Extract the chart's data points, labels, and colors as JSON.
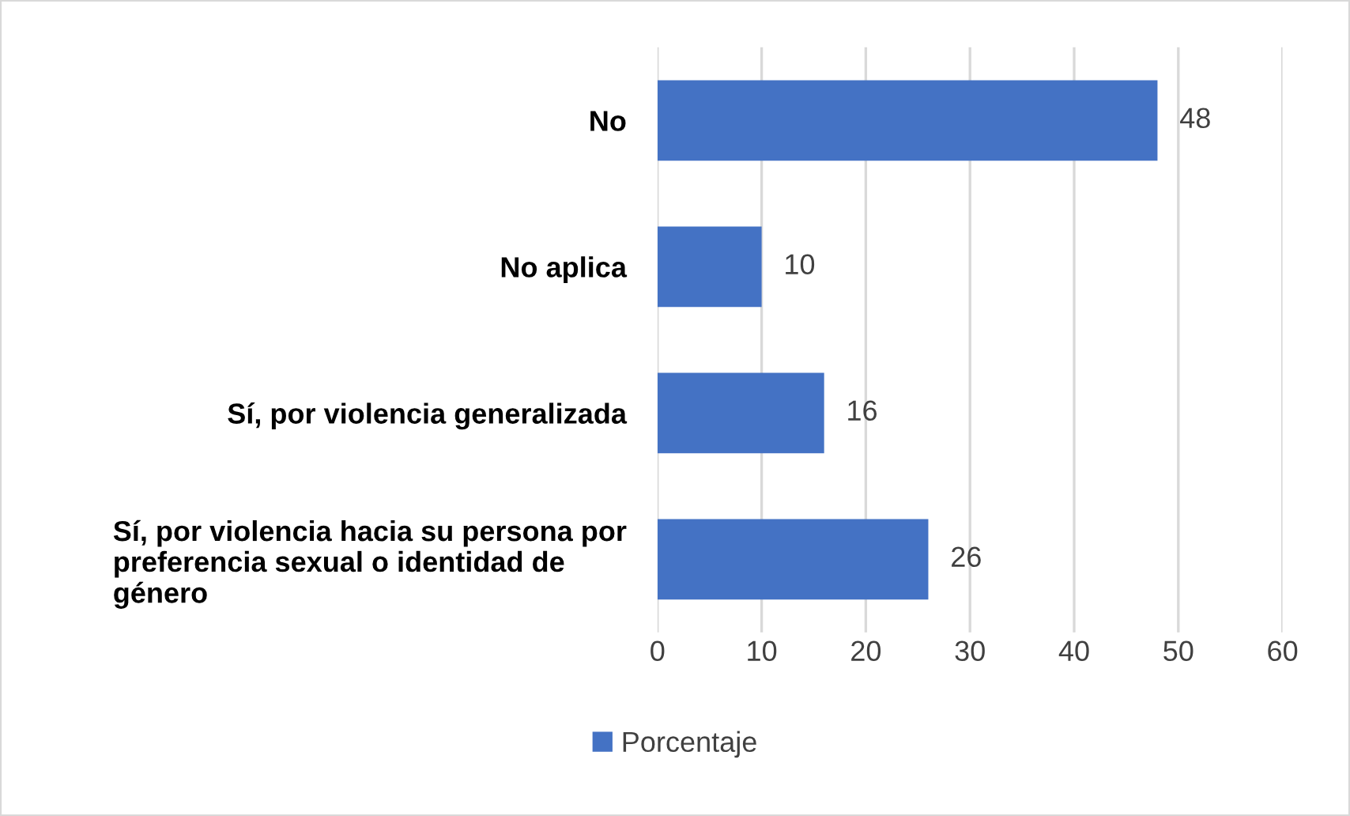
{
  "chart_data": {
    "type": "bar",
    "orientation": "horizontal",
    "categories": [
      "No",
      "No aplica",
      "Sí, por violencia generalizada",
      "Sí, por violencia hacia su persona por preferencia sexual o identidad de género"
    ],
    "series": [
      {
        "name": "Porcentaje",
        "color": "#4472c4",
        "values": [
          48,
          10,
          16,
          26
        ]
      }
    ],
    "xlim": [
      0,
      60
    ],
    "xticks": [
      0,
      10,
      20,
      30,
      40,
      50,
      60
    ],
    "grid": "x",
    "legend": "bottom",
    "data_labels": true
  }
}
